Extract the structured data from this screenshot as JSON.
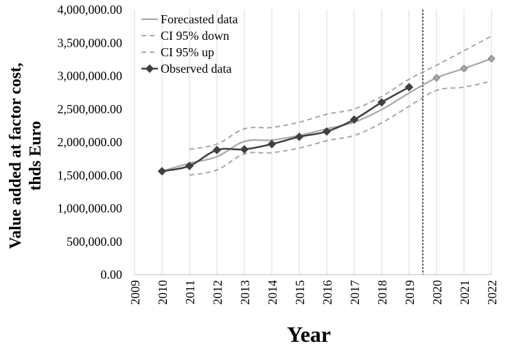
{
  "chart_data": {
    "type": "line",
    "title": "",
    "xlabel": "Year",
    "ylabel_lines": [
      "Value added at factor cost,",
      "thds Euro"
    ],
    "xlim": [
      2009,
      2022
    ],
    "ylim": [
      0,
      4000000
    ],
    "x_ticks": [
      "2009",
      "2010",
      "2011",
      "2012",
      "2013",
      "2014",
      "2015",
      "2016",
      "2017",
      "2018",
      "2019",
      "2020",
      "2021",
      "2022"
    ],
    "y_ticks": [
      "0.00",
      "500,000.00",
      "1,000,000.00",
      "1,500,000.00",
      "2,000,000.00",
      "2,500,000.00",
      "3,000,000.00",
      "3,500,000.00",
      "4,000,000.00"
    ],
    "vertical_marker_x": 2019.5,
    "grid": "vertical",
    "legend_position": "top-left",
    "colors": {
      "forecast": "#a6a6a6",
      "ci": "#a6a6a6",
      "observed": "#404040",
      "marker_line": "#000000",
      "grid": "#d9d9d9"
    },
    "series": [
      {
        "name": "Forecasted data",
        "style": "solid",
        "x": [
          2010,
          2011,
          2012,
          2013,
          2014,
          2015,
          2016,
          2017,
          2018,
          2019,
          2020,
          2021,
          2022
        ],
        "y": [
          1560000,
          1680000,
          1780000,
          2010000,
          2030000,
          2100000,
          2200000,
          2300000,
          2490000,
          2740000,
          2970000,
          3110000,
          3260000
        ],
        "forecast_point_x": [
          2020,
          2021,
          2022
        ],
        "forecast_point_y": [
          2970000,
          3110000,
          3260000
        ]
      },
      {
        "name": "CI 95% down",
        "style": "dashed",
        "x": [
          2011,
          2012,
          2013,
          2014,
          2015,
          2016,
          2017,
          2018,
          2019,
          2020,
          2021,
          2022
        ],
        "y": [
          1500000,
          1580000,
          1820000,
          1840000,
          1910000,
          2020000,
          2100000,
          2290000,
          2540000,
          2780000,
          2830000,
          2920000
        ]
      },
      {
        "name": "CI 95% up",
        "style": "dashed",
        "x": [
          2011,
          2012,
          2013,
          2014,
          2015,
          2016,
          2017,
          2018,
          2019,
          2020,
          2021,
          2022
        ],
        "y": [
          1890000,
          1970000,
          2200000,
          2220000,
          2300000,
          2420000,
          2500000,
          2690000,
          2950000,
          3160000,
          3380000,
          3600000
        ]
      },
      {
        "name": "Observed data",
        "style": "solid-marker",
        "x": [
          2010,
          2011,
          2012,
          2013,
          2014,
          2015,
          2016,
          2017,
          2018,
          2019
        ],
        "y": [
          1560000,
          1640000,
          1880000,
          1890000,
          1970000,
          2080000,
          2160000,
          2340000,
          2600000,
          2830000
        ]
      }
    ]
  }
}
